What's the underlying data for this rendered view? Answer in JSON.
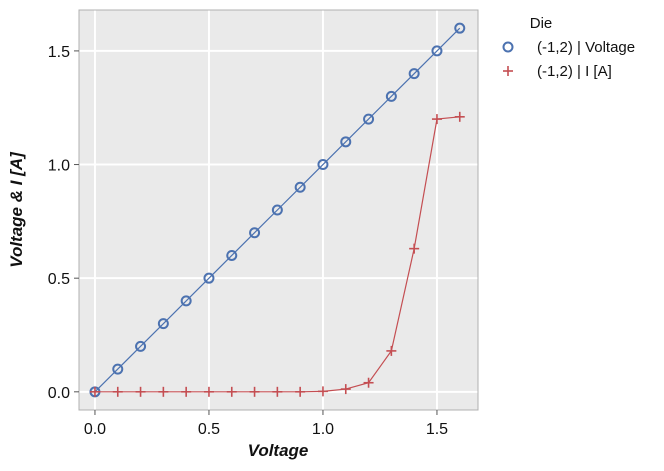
{
  "chart_data": {
    "type": "line",
    "xlabel": "Voltage",
    "ylabel": "Voltage & I [A]",
    "xlim": [
      -0.07,
      1.68
    ],
    "ylim": [
      -0.08,
      1.68
    ],
    "xticks": [
      0.0,
      0.5,
      1.0,
      1.5
    ],
    "xtick_labels": [
      "0.0",
      "0.5",
      "1.0",
      "1.5"
    ],
    "yticks": [
      0.0,
      0.5,
      1.0,
      1.5
    ],
    "ytick_labels": [
      "0.0",
      "0.5",
      "1.0",
      "1.5"
    ],
    "grid": true,
    "legend": {
      "title": "Die",
      "placement": "outside-top-right"
    },
    "series": [
      {
        "name": "(-1,2) | Voltage",
        "marker": "circle",
        "color": "#4c72b0",
        "x": [
          0.0,
          0.1,
          0.2,
          0.3,
          0.4,
          0.5,
          0.6,
          0.7,
          0.8,
          0.9,
          1.0,
          1.1,
          1.2,
          1.3,
          1.4,
          1.5,
          1.6
        ],
        "y": [
          0.0,
          0.1,
          0.2,
          0.3,
          0.4,
          0.5,
          0.6,
          0.7,
          0.8,
          0.9,
          1.0,
          1.1,
          1.2,
          1.3,
          1.4,
          1.5,
          1.6
        ]
      },
      {
        "name": "(-1,2) | I [A]",
        "marker": "plus",
        "color": "#c44e52",
        "x": [
          0.0,
          0.1,
          0.2,
          0.3,
          0.4,
          0.5,
          0.6,
          0.7,
          0.8,
          0.9,
          1.0,
          1.1,
          1.2,
          1.3,
          1.4,
          1.5,
          1.6
        ],
        "y": [
          0.0,
          0.0,
          0.0,
          0.0,
          0.0,
          0.0,
          0.0,
          0.0,
          0.0,
          0.0,
          0.002,
          0.012,
          0.04,
          0.18,
          0.63,
          1.2,
          1.21
        ]
      }
    ]
  },
  "colors": {
    "plot_background": "#eaeaea",
    "grid": "#ffffff",
    "frame": "#b0b0b0"
  }
}
